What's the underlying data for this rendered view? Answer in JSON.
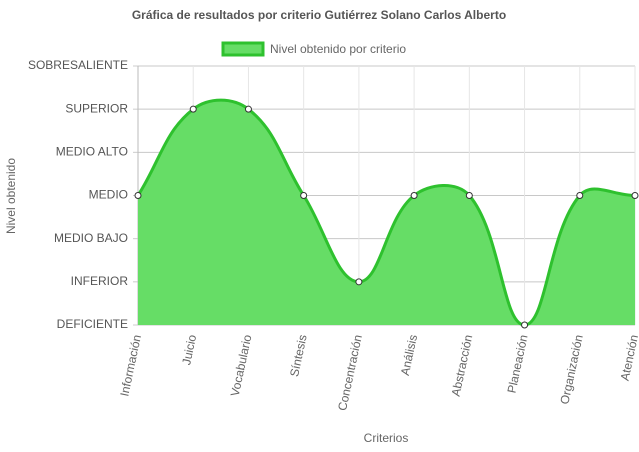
{
  "chart_data": {
    "type": "line",
    "fill": true,
    "title": "Gráfica de resultados por criterio Gutiérrez Solano Carlos Alberto",
    "x_label": "Criterios",
    "y_label": "Nivel obtenido",
    "categories": [
      "Información",
      "Juicio",
      "Vocabulario",
      "Síntesis",
      "Concentración",
      "Análisis",
      "Abstracción",
      "Planeación",
      "Organización",
      "Atención"
    ],
    "series": [
      {
        "name": "Nivel obtenido por criterio",
        "color": "#66dd66",
        "border_color": "#2ec12e",
        "values": [
          3,
          5,
          5,
          3,
          1,
          3,
          3,
          0,
          3,
          3
        ]
      }
    ],
    "ylim": [
      0,
      6
    ],
    "yticks": [
      {
        "value": 0,
        "label": "DEFICIENTE"
      },
      {
        "value": 1,
        "label": "INFERIOR"
      },
      {
        "value": 2,
        "label": "MEDIO BAJO"
      },
      {
        "value": 3,
        "label": "MEDIO"
      },
      {
        "value": 4,
        "label": "MEDIO ALTO"
      },
      {
        "value": 5,
        "label": "SUPERIOR"
      },
      {
        "value": 6,
        "label": "SOBRESALIENTE"
      }
    ],
    "grid": true,
    "legend": "top"
  }
}
